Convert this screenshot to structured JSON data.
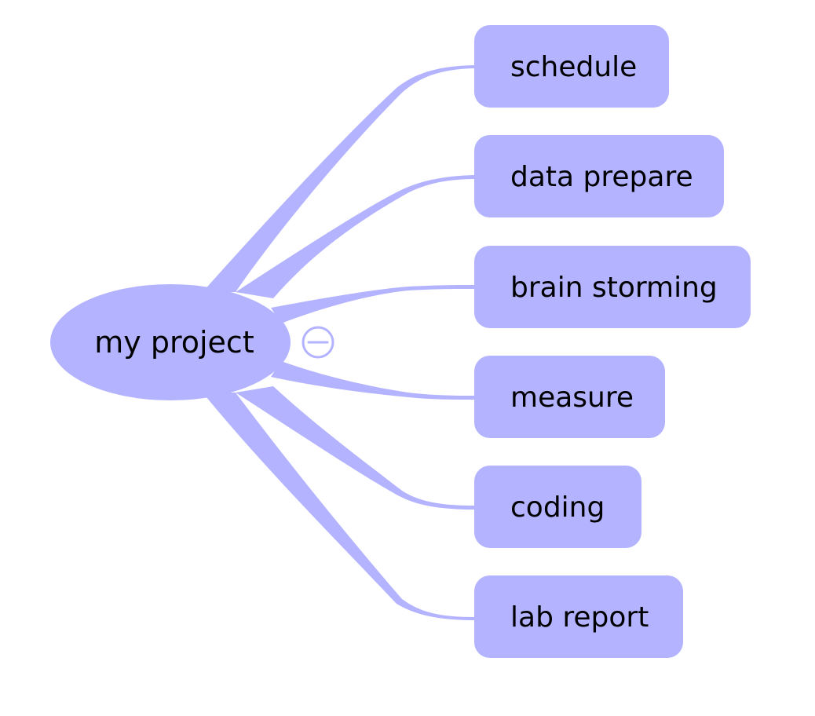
{
  "colors": {
    "node_fill": "#b3b3ff",
    "branch": "#b3b3ff",
    "text": "#000000",
    "background": "#ffffff"
  },
  "root": {
    "label": "my project",
    "toggle_icon": "collapse-minus-icon"
  },
  "children": [
    {
      "label": "schedule"
    },
    {
      "label": "data prepare"
    },
    {
      "label": "brain storming"
    },
    {
      "label": "measure"
    },
    {
      "label": "coding"
    },
    {
      "label": "lab report"
    }
  ]
}
